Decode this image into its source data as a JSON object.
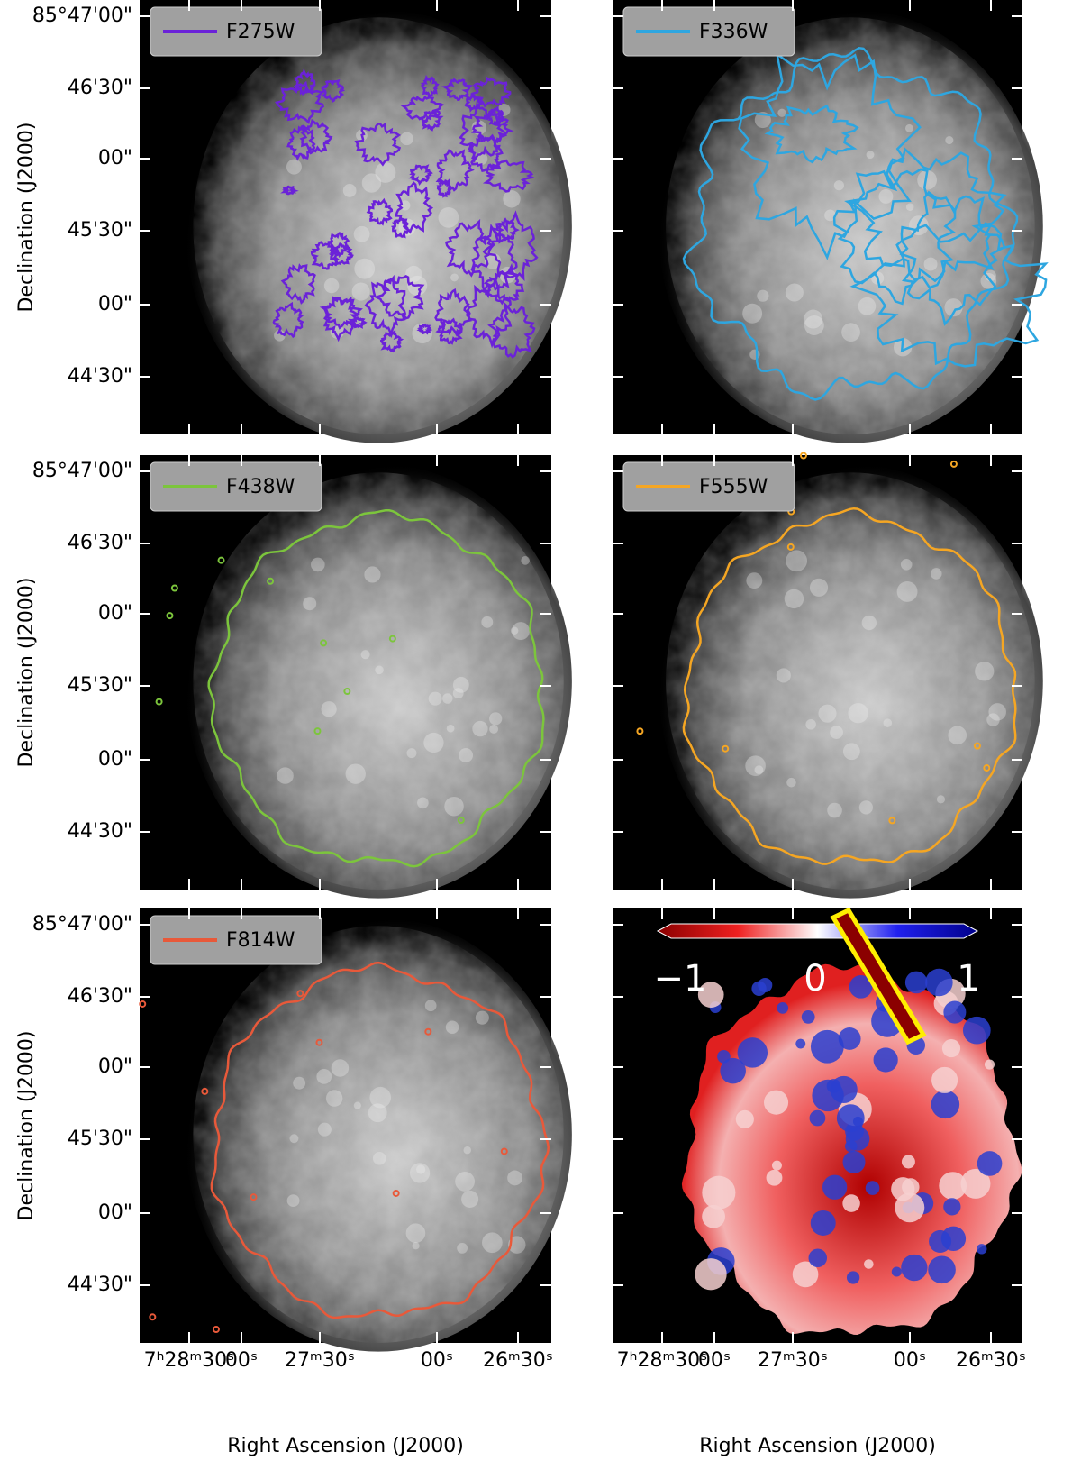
{
  "panels": [
    {
      "legend": "F275W",
      "color": "#6b22d8"
    },
    {
      "legend": "F336W",
      "color": "#2ea6e0"
    },
    {
      "legend": "F438W",
      "color": "#7cc53c"
    },
    {
      "legend": "F555W",
      "color": "#f5a623"
    },
    {
      "legend": "F814W",
      "color": "#e8593a"
    },
    {
      "colorbar_ticks": [
        "−1",
        "0",
        "1"
      ],
      "box_color": "#ffee00"
    }
  ],
  "y_axis": {
    "label": "Declination (J2000)",
    "ticks": [
      "85°47'00\"",
      "46'30\"",
      "00\"",
      "45'30\"",
      "00\"",
      "44'30\""
    ]
  },
  "x_axis": {
    "label": "Right Ascension (J2000)",
    "ticks": [
      "7ʰ28ᵐ30ˢ",
      "00ˢ",
      "27ᵐ30ˢ",
      "00ˢ",
      "26ᵐ30ˢ"
    ]
  }
}
